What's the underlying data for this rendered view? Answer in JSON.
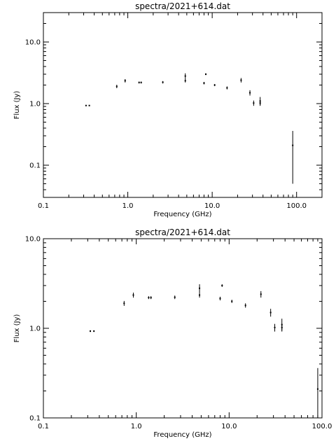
{
  "chart_data": [
    {
      "type": "scatter",
      "title": "spectra/2021+614.dat",
      "xlabel": "Frequency (GHz)",
      "ylabel": "Flux (Jy)",
      "xscale": "log",
      "yscale": "log",
      "xlim": [
        0.1,
        200
      ],
      "ylim": [
        0.03,
        30
      ],
      "xticks": [
        0.1,
        1.0,
        10.0,
        100.0
      ],
      "xtick_labels": [
        "0.1",
        "1.0",
        "10.0",
        "100.0"
      ],
      "yticks": [
        0.1,
        1.0,
        10.0
      ],
      "ytick_labels": [
        "0.1",
        "1.0",
        "10.0"
      ],
      "grid": false,
      "points": [
        {
          "x": 0.32,
          "y": 0.93,
          "yerr": 0.02
        },
        {
          "x": 0.35,
          "y": 0.93,
          "yerr": 0.02
        },
        {
          "x": 0.74,
          "y": 1.9,
          "yerr": 0.12
        },
        {
          "x": 0.93,
          "y": 2.35,
          "yerr": 0.15
        },
        {
          "x": 1.36,
          "y": 2.2,
          "yerr": 0.08
        },
        {
          "x": 1.44,
          "y": 2.2,
          "yerr": 0.08
        },
        {
          "x": 2.6,
          "y": 2.22,
          "yerr": 0.1
        },
        {
          "x": 4.8,
          "y": 2.8,
          "yerr": 0.3
        },
        {
          "x": 4.8,
          "y": 2.35,
          "yerr": 0.15
        },
        {
          "x": 8.0,
          "y": 2.15,
          "yerr": 0.1
        },
        {
          "x": 8.4,
          "y": 3.0,
          "yerr": 0.1
        },
        {
          "x": 10.7,
          "y": 2.0,
          "yerr": 0.08
        },
        {
          "x": 15.0,
          "y": 1.8,
          "yerr": 0.1
        },
        {
          "x": 22.0,
          "y": 2.4,
          "yerr": 0.2
        },
        {
          "x": 28.0,
          "y": 1.5,
          "yerr": 0.15
        },
        {
          "x": 31.0,
          "y": 1.02,
          "yerr": 0.1
        },
        {
          "x": 37.0,
          "y": 1.1,
          "yerr": 0.18
        },
        {
          "x": 37.0,
          "y": 1.02,
          "yerr": 0.08
        },
        {
          "x": 90.0,
          "y": 0.21,
          "ylow": 0.05,
          "yhigh": 0.36
        }
      ]
    },
    {
      "type": "scatter",
      "title": "spectra/2021+614.dat",
      "xlabel": "Frequency (GHz)",
      "ylabel": "Flux (Jy)",
      "xscale": "log",
      "yscale": "log",
      "xlim": [
        0.1,
        100
      ],
      "ylim": [
        0.1,
        10
      ],
      "xticks": [
        0.1,
        1.0,
        10.0,
        100.0
      ],
      "xtick_labels": [
        "0.1",
        "1.0",
        "10.0",
        "100.0"
      ],
      "yticks": [
        0.1,
        1.0,
        10.0
      ],
      "ytick_labels": [
        "0.1",
        "1.0",
        "10.0"
      ],
      "grid": false,
      "points": [
        {
          "x": 0.32,
          "y": 0.93,
          "yerr": 0.02
        },
        {
          "x": 0.35,
          "y": 0.93,
          "yerr": 0.02
        },
        {
          "x": 0.74,
          "y": 1.9,
          "yerr": 0.12
        },
        {
          "x": 0.93,
          "y": 2.35,
          "yerr": 0.15
        },
        {
          "x": 1.36,
          "y": 2.2,
          "yerr": 0.08
        },
        {
          "x": 1.44,
          "y": 2.2,
          "yerr": 0.08
        },
        {
          "x": 2.6,
          "y": 2.22,
          "yerr": 0.1
        },
        {
          "x": 4.8,
          "y": 2.8,
          "yerr": 0.3
        },
        {
          "x": 4.8,
          "y": 2.35,
          "yerr": 0.15
        },
        {
          "x": 8.0,
          "y": 2.15,
          "yerr": 0.1
        },
        {
          "x": 8.4,
          "y": 3.0,
          "yerr": 0.1
        },
        {
          "x": 10.7,
          "y": 2.0,
          "yerr": 0.08
        },
        {
          "x": 15.0,
          "y": 1.8,
          "yerr": 0.1
        },
        {
          "x": 22.0,
          "y": 2.4,
          "yerr": 0.2
        },
        {
          "x": 28.0,
          "y": 1.5,
          "yerr": 0.15
        },
        {
          "x": 31.0,
          "y": 1.02,
          "yerr": 0.1
        },
        {
          "x": 37.0,
          "y": 1.1,
          "yerr": 0.18
        },
        {
          "x": 37.0,
          "y": 1.02,
          "yerr": 0.08
        },
        {
          "x": 90.0,
          "y": 0.21,
          "ylow": 0.1,
          "yhigh": 0.36
        }
      ]
    }
  ]
}
